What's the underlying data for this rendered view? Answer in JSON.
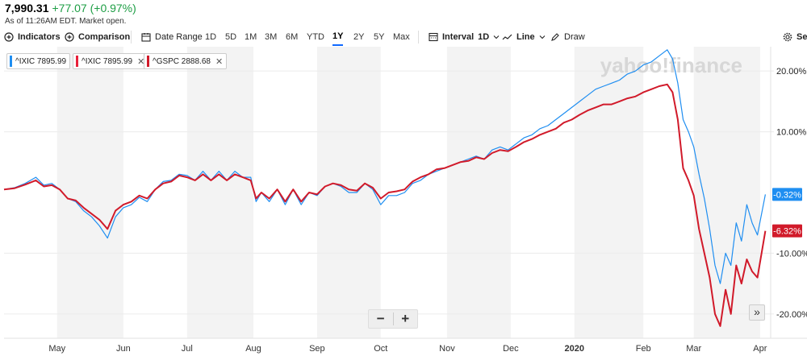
{
  "quote": {
    "price": "7,990.31",
    "change": "+77.07 (+0.97%)",
    "as_of": "As of 11:26AM EDT. Market open.",
    "change_color": "#1e9e45"
  },
  "toolbar": {
    "indicators": "Indicators",
    "comparison": "Comparison",
    "date_range": "Date Range",
    "ranges": [
      "1D",
      "5D",
      "1M",
      "3M",
      "6M",
      "YTD",
      "1Y",
      "2Y",
      "5Y",
      "Max"
    ],
    "active_range": "1Y",
    "interval_label": "Interval",
    "interval_value": "1D",
    "line_label": "Line",
    "draw": "Draw",
    "settings": "Set"
  },
  "legend": [
    {
      "label": "^IXIC 7895.99",
      "color": "#1f8ef1",
      "removable": false
    },
    {
      "label": "^IXIC 7895.99",
      "color": "#e8203a",
      "removable": true
    },
    {
      "label": "^GSPC 2888.68",
      "color": "#d11a2a",
      "removable": true
    }
  ],
  "watermark": "yahoo!finance",
  "zoom": {
    "minus": "−",
    "plus": "+"
  },
  "expand_label": "»",
  "chart_data": {
    "type": "line",
    "title": "",
    "xlabel": "",
    "ylabel": "",
    "ylim": [
      -24,
      24
    ],
    "y_ticks": [
      20,
      10,
      -10,
      -20
    ],
    "y_tick_labels": [
      "20.00%",
      "10.00%",
      "-10.00%",
      "-20.00%"
    ],
    "x_tick_labels": [
      "May",
      "Jun",
      "Jul",
      "Aug",
      "Sep",
      "Oct",
      "Nov",
      "Dec",
      "2020",
      "Feb",
      "Mar",
      "Apr"
    ],
    "x_tick_positions": [
      1.0,
      2.25,
      3.45,
      4.7,
      5.9,
      7.1,
      8.35,
      9.55,
      10.75,
      12.05,
      13.0,
      14.25
    ],
    "x_range": [
      0,
      14.45
    ],
    "shaded_months": [
      [
        1.0,
        2.25
      ],
      [
        3.45,
        4.7
      ],
      [
        5.9,
        7.1
      ],
      [
        8.35,
        9.55
      ],
      [
        10.75,
        12.05
      ],
      [
        13.0,
        14.25
      ]
    ],
    "last_labels": [
      "-0.32%",
      "-6.32%"
    ],
    "series": [
      {
        "name": "^IXIC",
        "color": "#1f8ef1",
        "x": [
          0,
          0.2,
          0.4,
          0.6,
          0.75,
          0.9,
          1.05,
          1.2,
          1.35,
          1.5,
          1.65,
          1.8,
          1.95,
          2.1,
          2.25,
          2.4,
          2.55,
          2.7,
          2.85,
          3.0,
          3.15,
          3.3,
          3.45,
          3.6,
          3.75,
          3.9,
          4.05,
          4.2,
          4.35,
          4.5,
          4.65,
          4.75,
          4.85,
          5.0,
          5.15,
          5.3,
          5.45,
          5.6,
          5.75,
          5.9,
          6.05,
          6.2,
          6.35,
          6.5,
          6.65,
          6.8,
          6.95,
          7.1,
          7.25,
          7.4,
          7.55,
          7.7,
          7.85,
          8.0,
          8.15,
          8.3,
          8.45,
          8.6,
          8.75,
          8.9,
          9.05,
          9.2,
          9.35,
          9.5,
          9.65,
          9.8,
          9.95,
          10.1,
          10.25,
          10.4,
          10.55,
          10.7,
          10.85,
          11.0,
          11.15,
          11.3,
          11.45,
          11.6,
          11.75,
          11.9,
          12.05,
          12.2,
          12.35,
          12.5,
          12.6,
          12.7,
          12.8,
          12.9,
          13.0,
          13.1,
          13.2,
          13.3,
          13.4,
          13.5,
          13.6,
          13.7,
          13.8,
          13.9,
          14.0,
          14.1,
          14.2,
          14.35
        ],
        "y": [
          0.5,
          0.8,
          1.5,
          2.5,
          1.2,
          1.5,
          0.5,
          -1.0,
          -1.5,
          -3.0,
          -4.0,
          -5.5,
          -7.5,
          -4.0,
          -2.5,
          -2.0,
          -0.8,
          -1.5,
          0.5,
          1.8,
          2.0,
          3.0,
          2.8,
          2.0,
          3.5,
          2.0,
          3.5,
          2.0,
          3.5,
          2.5,
          2.5,
          -1.5,
          0.0,
          -1.5,
          0.5,
          -2.0,
          0.5,
          -2.0,
          0.0,
          -0.5,
          1.0,
          1.5,
          1.0,
          0.0,
          0.0,
          1.5,
          0.5,
          -2.0,
          -0.5,
          -0.5,
          0.0,
          1.5,
          2.0,
          3.0,
          3.5,
          4.0,
          4.5,
          5.0,
          5.5,
          6.0,
          5.5,
          7.0,
          7.5,
          7.0,
          8.0,
          9.0,
          9.5,
          10.5,
          11.0,
          12.0,
          13.0,
          14.0,
          15.0,
          16.0,
          17.0,
          17.5,
          18.0,
          18.5,
          19.5,
          20.0,
          21.0,
          21.5,
          22.5,
          23.5,
          22.0,
          18.0,
          12.0,
          10.0,
          7.5,
          3.0,
          -1.0,
          -6.0,
          -12.0,
          -15.0,
          -10.0,
          -12.0,
          -5.0,
          -8.0,
          -2.0,
          -5.0,
          -7.0,
          -0.32
        ]
      },
      {
        "name": "^GSPC",
        "color": "#d11a2a",
        "x": [
          0,
          0.2,
          0.4,
          0.6,
          0.75,
          0.9,
          1.05,
          1.2,
          1.35,
          1.5,
          1.65,
          1.8,
          1.95,
          2.1,
          2.25,
          2.4,
          2.55,
          2.7,
          2.85,
          3.0,
          3.15,
          3.3,
          3.45,
          3.6,
          3.75,
          3.9,
          4.05,
          4.2,
          4.35,
          4.5,
          4.65,
          4.75,
          4.85,
          5.0,
          5.15,
          5.3,
          5.45,
          5.6,
          5.75,
          5.9,
          6.05,
          6.2,
          6.35,
          6.5,
          6.65,
          6.8,
          6.95,
          7.1,
          7.25,
          7.4,
          7.55,
          7.7,
          7.85,
          8.0,
          8.15,
          8.3,
          8.45,
          8.6,
          8.75,
          8.9,
          9.05,
          9.2,
          9.35,
          9.5,
          9.65,
          9.8,
          9.95,
          10.1,
          10.25,
          10.4,
          10.55,
          10.7,
          10.85,
          11.0,
          11.15,
          11.3,
          11.45,
          11.6,
          11.75,
          11.9,
          12.05,
          12.2,
          12.35,
          12.5,
          12.6,
          12.7,
          12.8,
          12.9,
          13.0,
          13.1,
          13.2,
          13.3,
          13.4,
          13.5,
          13.6,
          13.7,
          13.8,
          13.9,
          14.0,
          14.1,
          14.2,
          14.35
        ],
        "y": [
          0.5,
          0.7,
          1.3,
          2.0,
          1.0,
          1.2,
          0.5,
          -1.0,
          -1.3,
          -2.5,
          -3.5,
          -4.5,
          -6.0,
          -3.0,
          -2.0,
          -1.5,
          -0.5,
          -1.0,
          0.5,
          1.5,
          1.8,
          2.8,
          2.5,
          2.0,
          3.0,
          2.0,
          3.0,
          2.0,
          3.0,
          2.5,
          2.0,
          -1.0,
          0.0,
          -1.0,
          0.5,
          -1.5,
          0.5,
          -1.5,
          0.0,
          -0.3,
          1.0,
          1.5,
          1.2,
          0.5,
          0.3,
          1.5,
          0.8,
          -1.0,
          0.0,
          0.2,
          0.5,
          1.8,
          2.5,
          3.0,
          3.8,
          4.0,
          4.5,
          5.0,
          5.2,
          5.8,
          5.5,
          6.5,
          7.0,
          6.8,
          7.5,
          8.3,
          8.8,
          9.5,
          10.0,
          10.5,
          11.5,
          12.0,
          12.8,
          13.5,
          14.0,
          14.5,
          14.5,
          15.0,
          15.5,
          15.8,
          16.5,
          17.0,
          17.5,
          17.8,
          16.5,
          12.0,
          4.0,
          2.0,
          -0.5,
          -6.0,
          -10.0,
          -14.0,
          -20.0,
          -22.0,
          -16.0,
          -20.0,
          -12.0,
          -15.0,
          -11.0,
          -13.0,
          -14.0,
          -6.32
        ]
      }
    ]
  }
}
